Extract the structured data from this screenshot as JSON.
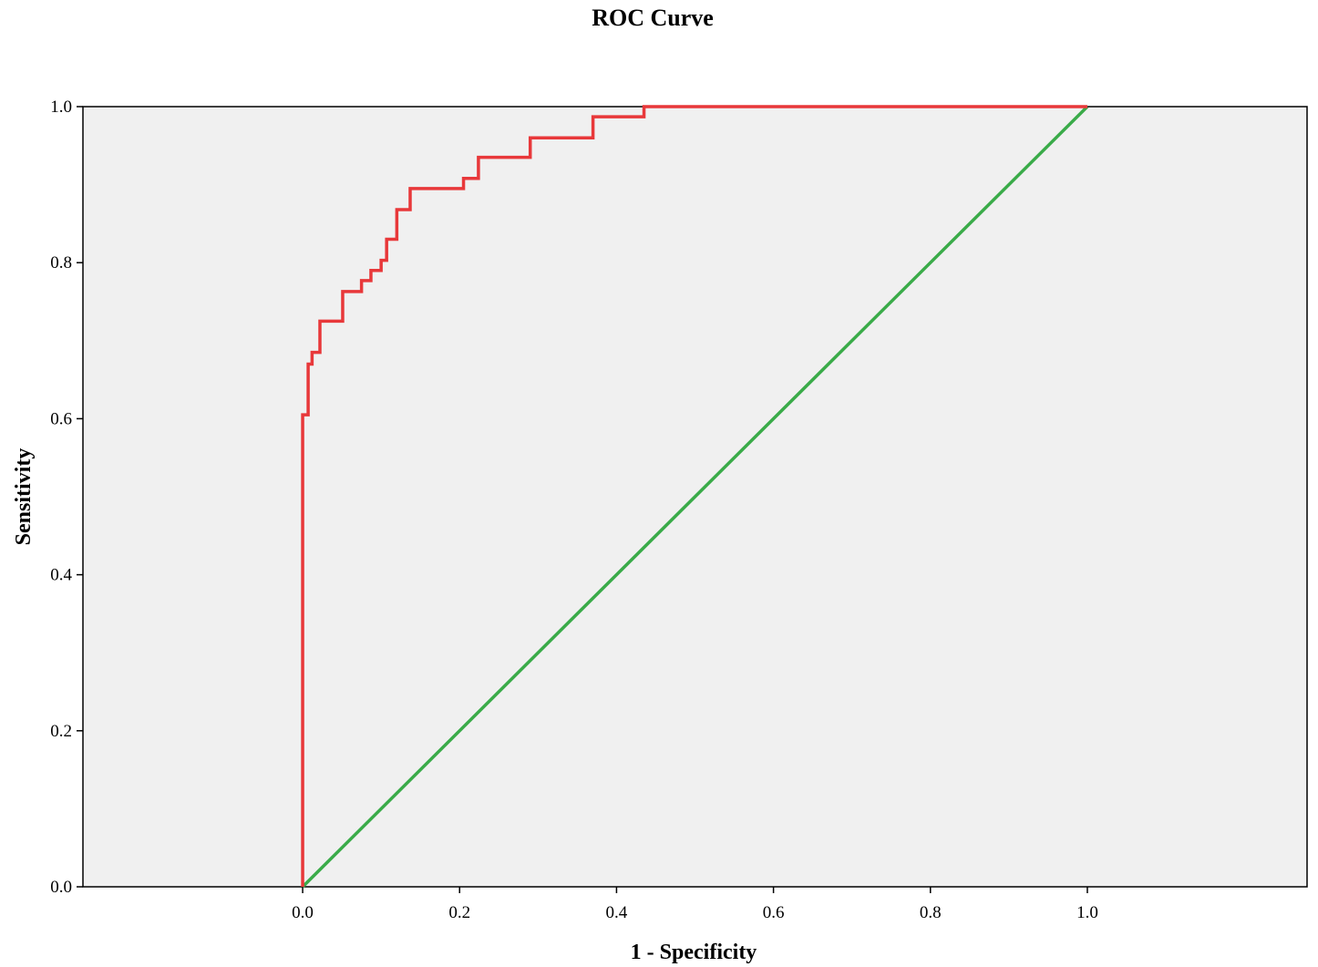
{
  "chart_data": {
    "type": "line",
    "title": "ROC Curve",
    "xlabel": "1 - Specificity",
    "ylabel": "Sensitivity",
    "xlim": [
      -0.28,
      1.28
    ],
    "ylim": [
      0,
      1
    ],
    "x_ticks": [
      0.0,
      0.2,
      0.4,
      0.6,
      0.8,
      1.0
    ],
    "x_tick_labels": [
      "0.0",
      "0.2",
      "0.4",
      "0.6",
      "0.8",
      "1.0"
    ],
    "y_ticks": [
      0.0,
      0.2,
      0.4,
      0.6,
      0.8,
      1.0
    ],
    "y_tick_labels": [
      "0.0",
      "0.2",
      "0.4",
      "0.6",
      "0.8",
      "1.0"
    ],
    "grid": false,
    "background_color": "#f0f0f0",
    "series": [
      {
        "color": "#e8383a",
        "x": [
          0.0,
          0.0,
          0.007,
          0.007,
          0.012,
          0.012,
          0.022,
          0.022,
          0.051,
          0.051,
          0.075,
          0.075,
          0.087,
          0.087,
          0.1,
          0.1,
          0.107,
          0.107,
          0.12,
          0.12,
          0.137,
          0.137,
          0.205,
          0.205,
          0.224,
          0.224,
          0.29,
          0.29,
          0.37,
          0.37,
          0.435,
          0.435,
          1.0
        ],
        "y": [
          0.0,
          0.605,
          0.605,
          0.67,
          0.67,
          0.685,
          0.685,
          0.725,
          0.725,
          0.763,
          0.763,
          0.777,
          0.777,
          0.79,
          0.79,
          0.803,
          0.803,
          0.83,
          0.83,
          0.868,
          0.868,
          0.895,
          0.895,
          0.908,
          0.908,
          0.935,
          0.935,
          0.96,
          0.96,
          0.987,
          0.987,
          1.0,
          1.0
        ]
      },
      {
        "color": "#3aab49",
        "x": [
          0.0,
          1.0
        ],
        "y": [
          0.0,
          1.0
        ]
      }
    ]
  }
}
